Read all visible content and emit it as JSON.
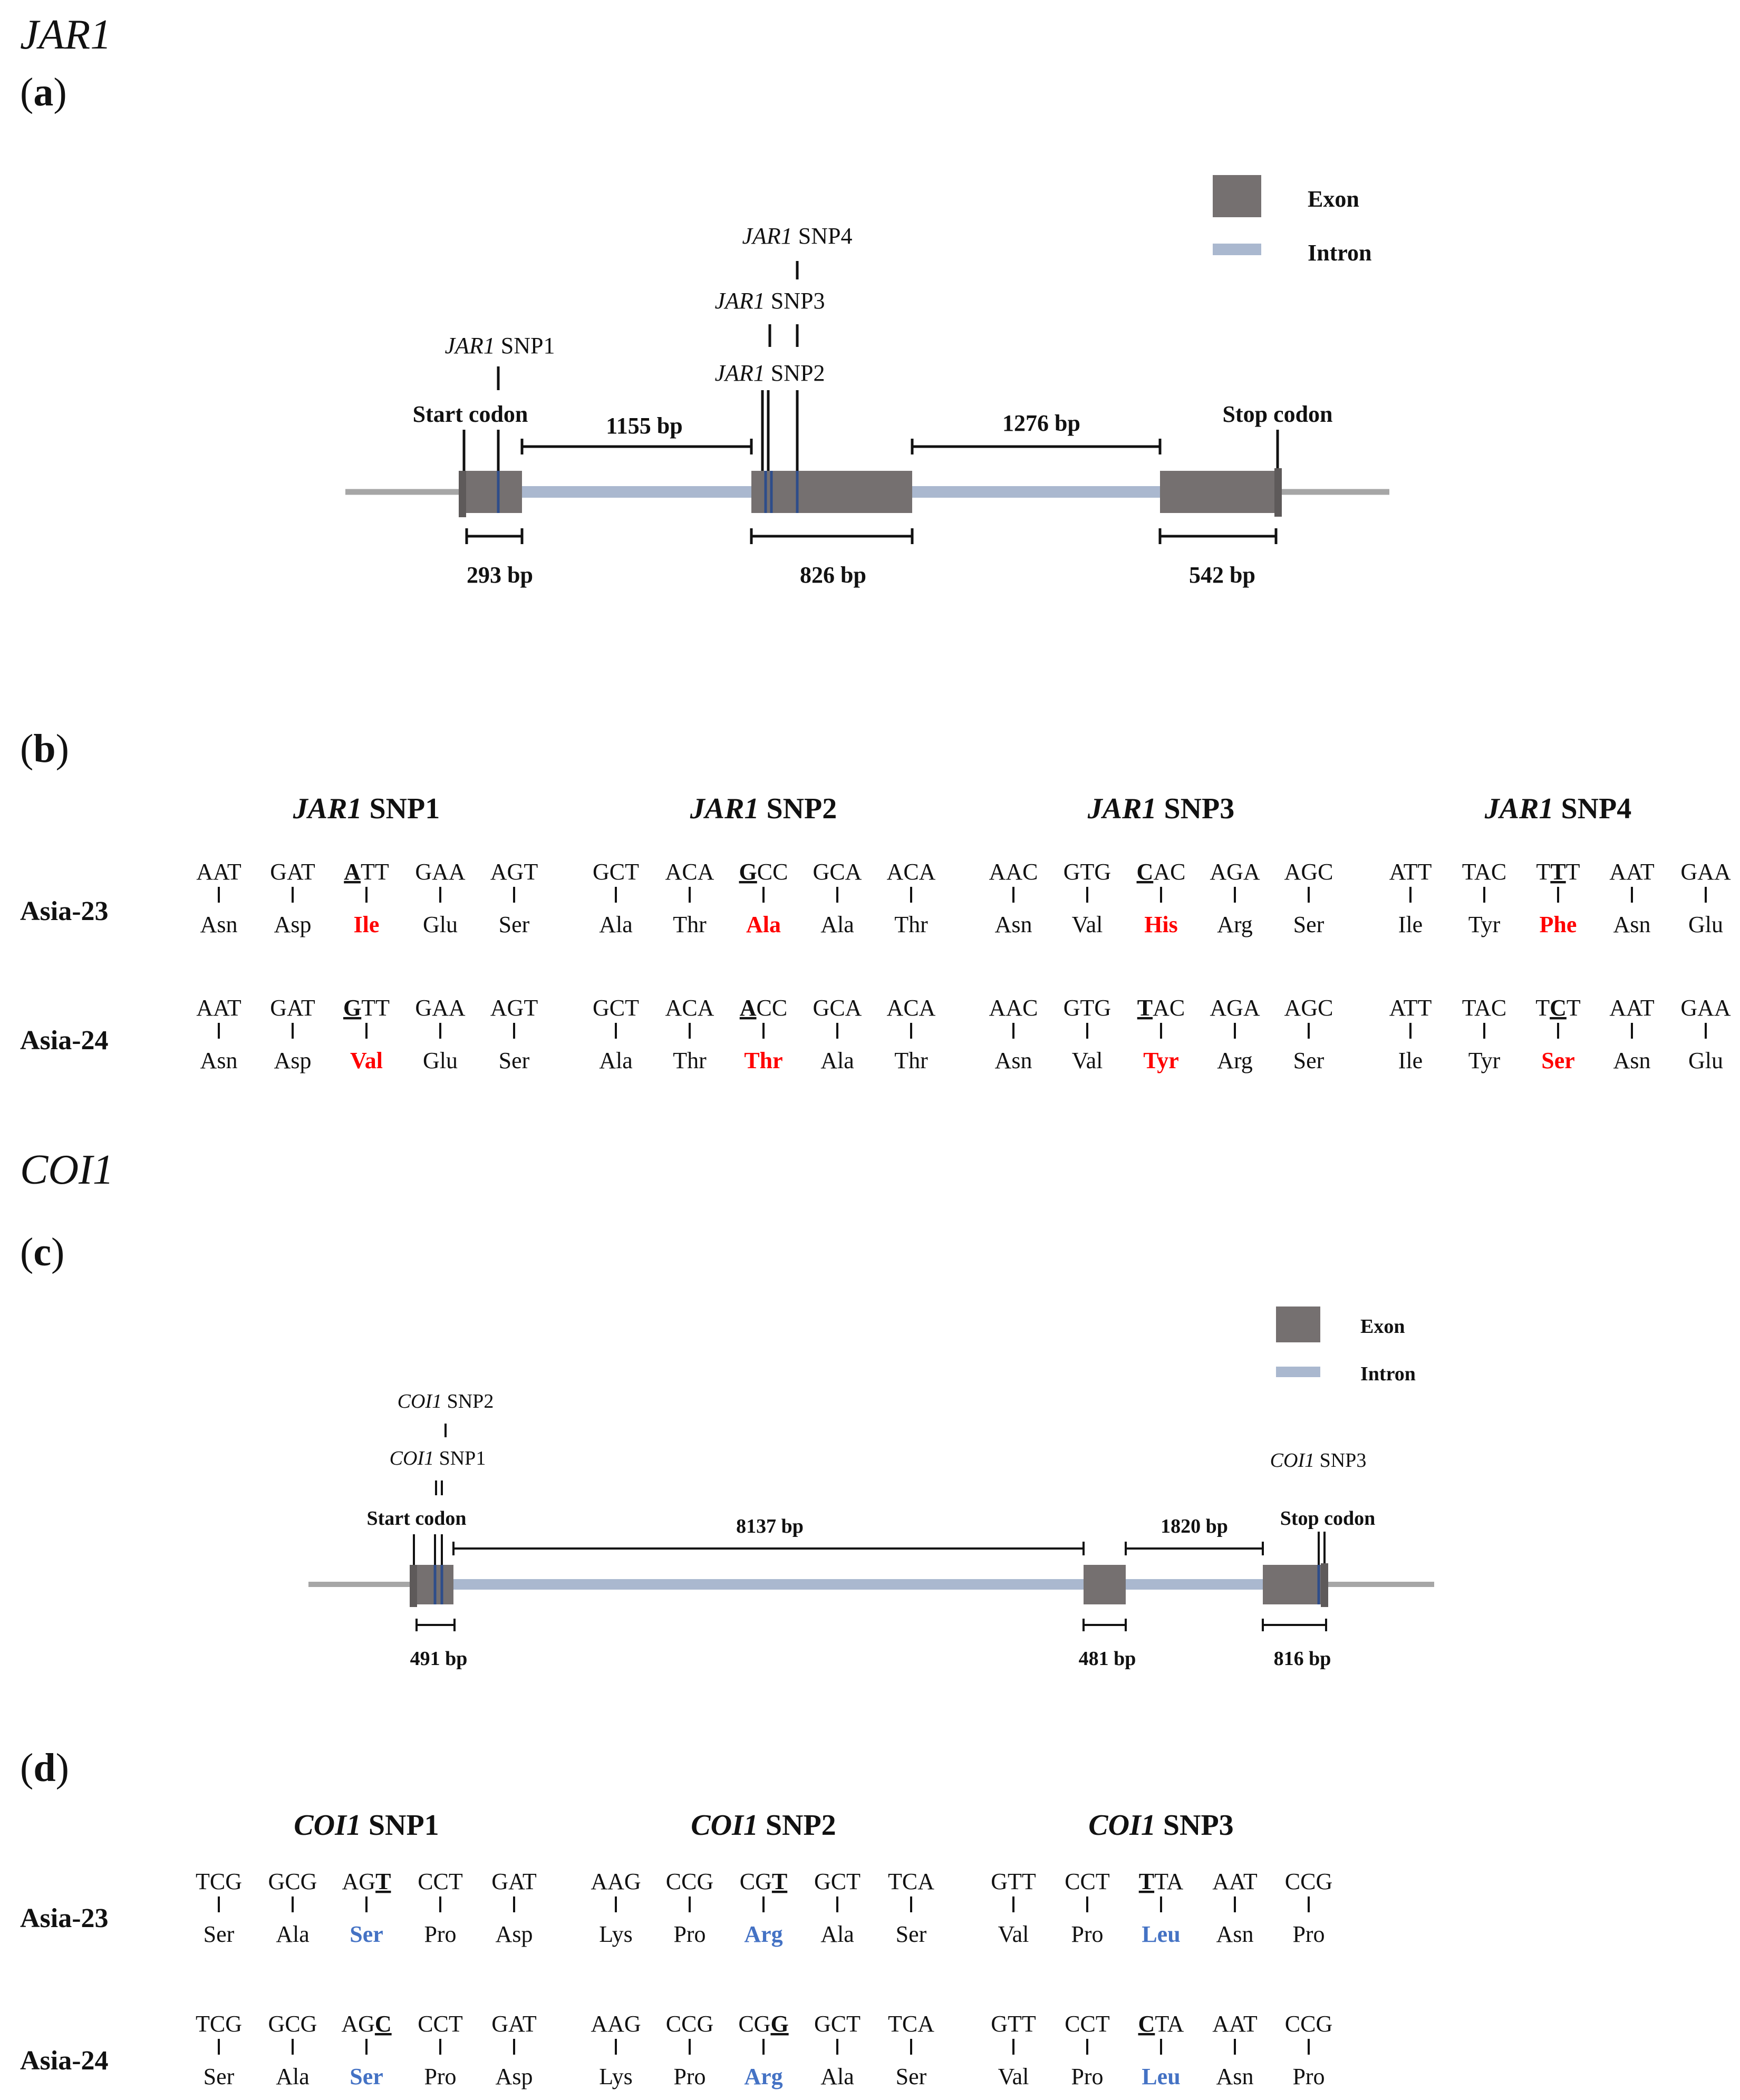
{
  "colors": {
    "exon": "#757070",
    "intron": "#aab8cf",
    "flank": "#a6a6a6",
    "text": "#111111",
    "snp_line": "#2e4d8a",
    "jar1_highlight": "#ff0000",
    "coi1_highlight": "#4472c4"
  },
  "jar1": {
    "title": "JAR1",
    "panel_a": {
      "label_open": "(",
      "label_letter": "a",
      "label_close": ")",
      "legend": {
        "exon": "Exon",
        "intron": "Intron"
      },
      "start_codon": "Start codon",
      "stop_codon": "Stop codon",
      "snps": [
        {
          "gene": "JAR1",
          "name": "SNP1"
        },
        {
          "gene": "JAR1",
          "name": "SNP2"
        },
        {
          "gene": "JAR1",
          "name": "SNP3"
        },
        {
          "gene": "JAR1",
          "name": "SNP4"
        }
      ],
      "exon_lengths": [
        "293 bp",
        "826 bp",
        "542 bp"
      ],
      "intron_lengths": [
        "1155 bp",
        "1276 bp"
      ]
    },
    "panel_b": {
      "label_open": "(",
      "label_letter": "b",
      "label_close": ")",
      "highlight": "red",
      "rows": [
        "Asia-23",
        "Asia-24"
      ],
      "groups": [
        {
          "gene": "JAR1",
          "name": "SNP1",
          "codons": [
            [
              {
                "pre": "AAT"
              },
              {
                "pre": "GAT"
              },
              {
                "pre": "",
                "mut": "A",
                "post": "TT"
              },
              {
                "pre": "GAA"
              },
              {
                "pre": "AGT"
              }
            ],
            [
              {
                "pre": "AAT"
              },
              {
                "pre": "GAT"
              },
              {
                "pre": "",
                "mut": "G",
                "post": "TT"
              },
              {
                "pre": "GAA"
              },
              {
                "pre": "AGT"
              }
            ]
          ],
          "aminos": [
            [
              "Asn",
              "Asp",
              "Ile",
              "Glu",
              "Ser"
            ],
            [
              "Asn",
              "Asp",
              "Val",
              "Glu",
              "Ser"
            ]
          ]
        },
        {
          "gene": "JAR1",
          "name": "SNP2",
          "codons": [
            [
              {
                "pre": "GCT"
              },
              {
                "pre": "ACA"
              },
              {
                "pre": "",
                "mut": "G",
                "post": "CC"
              },
              {
                "pre": "GCA"
              },
              {
                "pre": "ACA"
              }
            ],
            [
              {
                "pre": "GCT"
              },
              {
                "pre": "ACA"
              },
              {
                "pre": "",
                "mut": "A",
                "post": "CC"
              },
              {
                "pre": "GCA"
              },
              {
                "pre": "ACA"
              }
            ]
          ],
          "aminos": [
            [
              "Ala",
              "Thr",
              "Ala",
              "Ala",
              "Thr"
            ],
            [
              "Ala",
              "Thr",
              "Thr",
              "Ala",
              "Thr"
            ]
          ]
        },
        {
          "gene": "JAR1",
          "name": "SNP3",
          "codons": [
            [
              {
                "pre": "AAC"
              },
              {
                "pre": "GTG"
              },
              {
                "pre": "",
                "mut": "C",
                "post": "AC"
              },
              {
                "pre": "AGA"
              },
              {
                "pre": "AGC"
              }
            ],
            [
              {
                "pre": "AAC"
              },
              {
                "pre": "GTG"
              },
              {
                "pre": "",
                "mut": "T",
                "post": "AC"
              },
              {
                "pre": "AGA"
              },
              {
                "pre": "AGC"
              }
            ]
          ],
          "aminos": [
            [
              "Asn",
              "Val",
              "His",
              "Arg",
              "Ser"
            ],
            [
              "Asn",
              "Val",
              "Tyr",
              "Arg",
              "Ser"
            ]
          ]
        },
        {
          "gene": "JAR1",
          "name": "SNP4",
          "codons": [
            [
              {
                "pre": "ATT"
              },
              {
                "pre": "TAC"
              },
              {
                "pre": "T",
                "mut": "T",
                "post": "T"
              },
              {
                "pre": "AAT"
              },
              {
                "pre": "GAA"
              }
            ],
            [
              {
                "pre": "ATT"
              },
              {
                "pre": "TAC"
              },
              {
                "pre": "T",
                "mut": "C",
                "post": "T"
              },
              {
                "pre": "AAT"
              },
              {
                "pre": "GAA"
              }
            ]
          ],
          "aminos": [
            [
              "Ile",
              "Tyr",
              "Phe",
              "Asn",
              "Glu"
            ],
            [
              "Ile",
              "Tyr",
              "Ser",
              "Asn",
              "Glu"
            ]
          ]
        }
      ]
    }
  },
  "coi1": {
    "title": "COI1",
    "panel_c": {
      "label_open": "(",
      "label_letter": "c",
      "label_close": ")",
      "legend": {
        "exon": "Exon",
        "intron": "Intron"
      },
      "start_codon": "Start codon",
      "stop_codon": "Stop codon",
      "snps": [
        {
          "gene": "COI1",
          "name": "SNP1"
        },
        {
          "gene": "COI1",
          "name": "SNP2"
        },
        {
          "gene": "COI1",
          "name": "SNP3"
        }
      ],
      "exon_lengths": [
        "491 bp",
        "481 bp",
        "816 bp"
      ],
      "intron_lengths": [
        "8137 bp",
        "1820 bp"
      ]
    },
    "panel_d": {
      "label_open": "(",
      "label_letter": "d",
      "label_close": ")",
      "highlight": "blue",
      "rows": [
        "Asia-23",
        "Asia-24"
      ],
      "groups": [
        {
          "gene": "COI1",
          "name": "SNP1",
          "codons": [
            [
              {
                "pre": "TCG"
              },
              {
                "pre": "GCG"
              },
              {
                "pre": "AG",
                "mut": "T",
                "post": ""
              },
              {
                "pre": "CCT"
              },
              {
                "pre": "GAT"
              }
            ],
            [
              {
                "pre": "TCG"
              },
              {
                "pre": "GCG"
              },
              {
                "pre": "AG",
                "mut": "C",
                "post": ""
              },
              {
                "pre": "CCT"
              },
              {
                "pre": "GAT"
              }
            ]
          ],
          "aminos": [
            [
              "Ser",
              "Ala",
              "Ser",
              "Pro",
              "Asp"
            ],
            [
              "Ser",
              "Ala",
              "Ser",
              "Pro",
              "Asp"
            ]
          ]
        },
        {
          "gene": "COI1",
          "name": "SNP2",
          "codons": [
            [
              {
                "pre": "AAG"
              },
              {
                "pre": "CCG"
              },
              {
                "pre": "CG",
                "mut": "T",
                "post": ""
              },
              {
                "pre": "GCT"
              },
              {
                "pre": "TCA"
              }
            ],
            [
              {
                "pre": "AAG"
              },
              {
                "pre": "CCG"
              },
              {
                "pre": "CG",
                "mut": "G",
                "post": ""
              },
              {
                "pre": "GCT"
              },
              {
                "pre": "TCA"
              }
            ]
          ],
          "aminos": [
            [
              "Lys",
              "Pro",
              "Arg",
              "Ala",
              "Ser"
            ],
            [
              "Lys",
              "Pro",
              "Arg",
              "Ala",
              "Ser"
            ]
          ]
        },
        {
          "gene": "COI1",
          "name": "SNP3",
          "codons": [
            [
              {
                "pre": "GTT"
              },
              {
                "pre": "CCT"
              },
              {
                "pre": "",
                "mut": "T",
                "post": "TA"
              },
              {
                "pre": "AAT"
              },
              {
                "pre": "CCG"
              }
            ],
            [
              {
                "pre": "GTT"
              },
              {
                "pre": "CCT"
              },
              {
                "pre": "",
                "mut": "C",
                "post": "TA"
              },
              {
                "pre": "AAT"
              },
              {
                "pre": "CCG"
              }
            ]
          ],
          "aminos": [
            [
              "Val",
              "Pro",
              "Leu",
              "Asn",
              "Pro"
            ],
            [
              "Val",
              "Pro",
              "Leu",
              "Asn",
              "Pro"
            ]
          ]
        }
      ]
    }
  }
}
